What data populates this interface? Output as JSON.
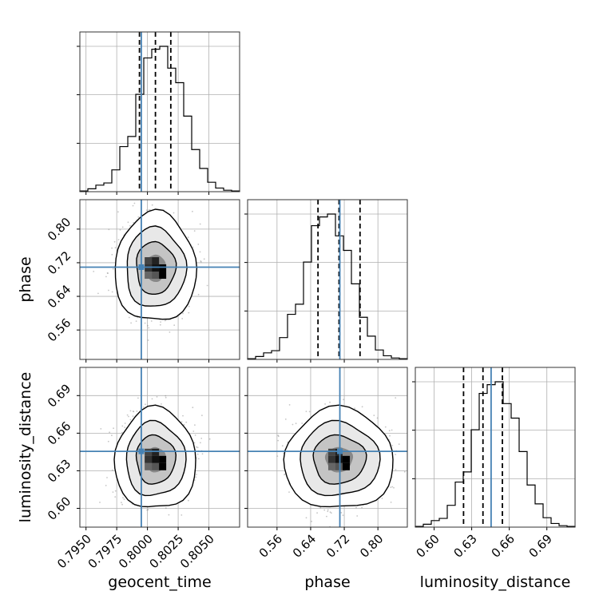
{
  "chart_data": {
    "type": "corner",
    "parameters": [
      {
        "name": "geocent_time",
        "label": "geocent_time",
        "range": [
          0.7945,
          0.8075
        ],
        "ticks": [
          0.795,
          0.7975,
          0.8,
          0.8025,
          0.805
        ],
        "tick_labels": [
          "0.7950",
          "0.7975",
          "0.8000",
          "0.8025",
          "0.8050"
        ],
        "truth": 0.7995,
        "quantiles": [
          0.79935,
          0.80065,
          0.8019
        ],
        "hist": [
          0.005,
          0.02,
          0.045,
          0.06,
          0.15,
          0.31,
          0.38,
          0.67,
          0.92,
          0.98,
          1.0,
          0.85,
          0.75,
          0.52,
          0.29,
          0.16,
          0.065,
          0.025,
          0.01,
          0.005
        ]
      },
      {
        "name": "phase",
        "label": "phase",
        "range": [
          0.49,
          0.87
        ],
        "ticks": [
          0.56,
          0.64,
          0.72,
          0.8
        ],
        "tick_labels": [
          "0.56",
          "0.64",
          "0.72",
          "0.80"
        ],
        "truth": 0.7095,
        "quantiles": [
          0.6575,
          0.7075,
          0.7575
        ],
        "hist": [
          0.005,
          0.02,
          0.045,
          0.06,
          0.15,
          0.31,
          0.38,
          0.67,
          0.92,
          0.98,
          1.0,
          0.85,
          0.75,
          0.52,
          0.29,
          0.16,
          0.065,
          0.025,
          0.01,
          0.005
        ]
      },
      {
        "name": "luminosity_distance",
        "label": "luminosity_distance",
        "range": [
          0.585,
          0.7125
        ],
        "ticks": [
          0.6,
          0.63,
          0.66,
          0.69
        ],
        "tick_labels": [
          "0.60",
          "0.63",
          "0.66",
          "0.69"
        ],
        "truth": 0.6455,
        "quantiles": [
          0.6235,
          0.639,
          0.6545
        ],
        "hist": [
          0.005,
          0.02,
          0.045,
          0.06,
          0.15,
          0.31,
          0.38,
          0.67,
          0.92,
          0.98,
          1.0,
          0.85,
          0.75,
          0.52,
          0.29,
          0.16,
          0.065,
          0.025,
          0.01,
          0.005
        ]
      }
    ],
    "colors": {
      "truth": "#4682b4",
      "hist": "#000000",
      "quantile": "#000000",
      "points": "#808080"
    }
  }
}
